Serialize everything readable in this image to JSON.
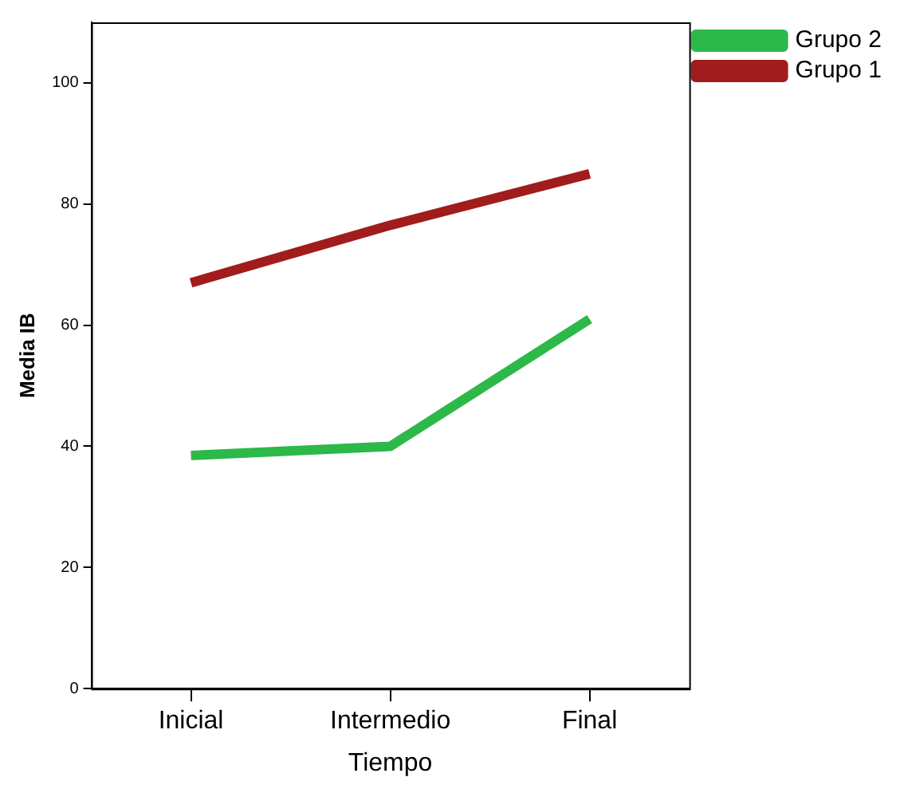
{
  "chart_data": {
    "type": "line",
    "xlabel": "Tiempo",
    "ylabel": "Media IB",
    "categories": [
      "Inicial",
      "Intermedio",
      "Final"
    ],
    "series": [
      {
        "name": "Grupo 2",
        "color": "#2db84a",
        "values": [
          38.5,
          40,
          61
        ]
      },
      {
        "name": "Grupo 1",
        "color": "#a11c1c",
        "values": [
          67,
          76.5,
          85
        ]
      }
    ],
    "ylim": [
      0,
      110
    ],
    "yticks": [
      0,
      20,
      40,
      60,
      80,
      100
    ],
    "grid": false,
    "legend": "right",
    "marker": "none",
    "line_style": "solid"
  }
}
